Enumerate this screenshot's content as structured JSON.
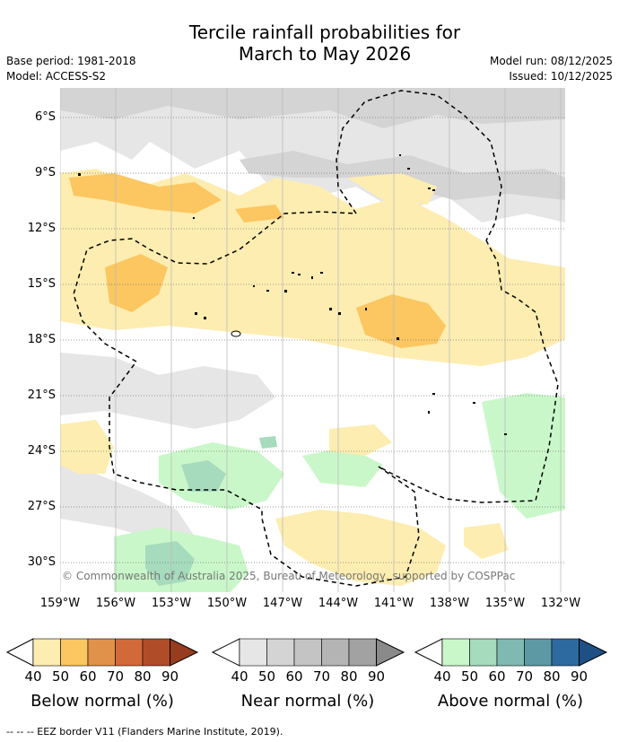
{
  "title_line1": "Tercile rainfall probabilities for",
  "title_line2": "March to May 2026",
  "base_period": "Base period: 1981-2018",
  "model": "Model: ACCESS-S2",
  "model_run": "Model run: 08/12/2025",
  "issued": "Issued: 10/12/2025",
  "lat_labels": [
    "6°S",
    "9°S",
    "12°S",
    "15°S",
    "18°S",
    "21°S",
    "24°S",
    "27°S",
    "30°S"
  ],
  "lon_labels": [
    "159°W",
    "156°W",
    "153°W",
    "150°W",
    "147°W",
    "144°W",
    "141°W",
    "138°W",
    "135°W",
    "132°W"
  ],
  "copyright": "© Commonwealth of Australia 2025, Bureau of Meteorology, supported by COSPPac",
  "colorbars": [
    {
      "title": "Below normal (%)",
      "ticks": [
        "40",
        "50",
        "60",
        "70",
        "80",
        "90"
      ],
      "colors": [
        "#fdedb0",
        "#fcc660",
        "#e0924a",
        "#d2693a",
        "#b04d28",
        "#983c20"
      ]
    },
    {
      "title": "Near normal (%)",
      "ticks": [
        "40",
        "50",
        "60",
        "70",
        "80",
        "90"
      ],
      "colors": [
        "#e6e6e6",
        "#d4d4d4",
        "#c4c4c4",
        "#b4b4b4",
        "#a2a2a2",
        "#8a8a8a"
      ]
    },
    {
      "title": "Above normal (%)",
      "ticks": [
        "40",
        "50",
        "60",
        "70",
        "80",
        "90"
      ],
      "colors": [
        "#c9f7c9",
        "#a6dbbd",
        "#80b9b2",
        "#5c99a5",
        "#2d6aa0",
        "#1f4f85"
      ]
    }
  ],
  "footer": "--  --  -- EEZ border V11 (Flanders Marine Institute, 2019).",
  "colors": {
    "below40": "#fdedb0",
    "below50": "#fcc660",
    "near40": "#e6e6e6",
    "near50": "#d4d4d4",
    "above40": "#c9f7c9",
    "above50": "#a6dbbd"
  }
}
